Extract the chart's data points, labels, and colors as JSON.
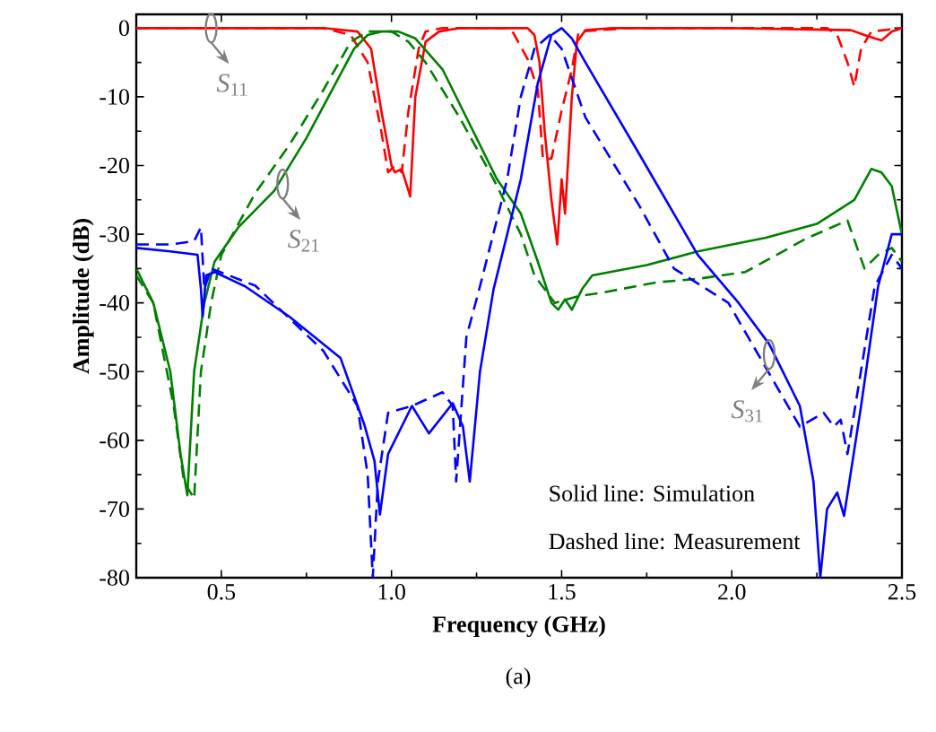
{
  "chart_data": {
    "type": "line",
    "xlabel": "Frequency (GHz)",
    "ylabel": "Amplitude (dB)",
    "xlim": [
      0.25,
      2.5
    ],
    "xticks": [
      0.5,
      {
        "value": 1.0,
        "label": "1.0"
      },
      1.5,
      {
        "value": 2.0,
        "label": "2.0"
      },
      2.5
    ],
    "ylim": [
      -80,
      2
    ],
    "yticks": [
      -80,
      -70,
      -60,
      -50,
      -40,
      -30,
      -20,
      -10,
      0
    ],
    "grid": false,
    "marker": "none",
    "series": [
      {
        "color": "#ff0000",
        "line_style": "solid",
        "x": [
          0.25,
          0.5,
          0.8,
          0.9,
          0.94,
          0.97,
          1.0,
          1.01,
          1.03,
          1.055,
          1.07,
          1.1,
          1.14,
          1.2,
          1.4,
          1.42,
          1.435,
          1.45,
          1.47,
          1.487,
          1.5,
          1.51,
          1.53,
          1.545,
          1.57,
          1.65,
          2.0,
          2.35,
          2.39,
          2.42,
          2.44,
          2.47,
          2.5
        ],
        "values": [
          0,
          0,
          0,
          -0.5,
          -3,
          -12,
          -20,
          -21,
          -20.5,
          -24.5,
          -10,
          -2,
          -0.5,
          0,
          0,
          -1,
          -5,
          -15,
          -25,
          -31.5,
          -22,
          -27,
          -10,
          -2,
          -0.3,
          0,
          0,
          -0.3,
          -1,
          -1.5,
          -1.8,
          -0.5,
          0
        ]
      },
      {
        "color": "#ff0000",
        "line_style": "dashed",
        "x": [
          0.25,
          0.5,
          0.8,
          0.88,
          0.93,
          0.97,
          0.99,
          1.01,
          1.03,
          1.05,
          1.08,
          1.1,
          1.15,
          1.35,
          1.4,
          1.43,
          1.445,
          1.47,
          1.5,
          1.53,
          1.55,
          1.7,
          2.0,
          2.28,
          2.31,
          2.34,
          2.36,
          2.38,
          2.41,
          2.5
        ],
        "values": [
          0,
          0,
          0,
          -1,
          -5,
          -15,
          -21,
          -20,
          -21,
          -12,
          -3,
          -0.5,
          0,
          0,
          -4.5,
          -9,
          -19,
          -19,
          -12,
          -6,
          -0.5,
          0,
          0,
          0,
          -1,
          -5,
          -8.5,
          -3,
          -0.5,
          0
        ]
      },
      {
        "color": "#008000",
        "line_style": "solid",
        "x": [
          0.25,
          0.3,
          0.35,
          0.38,
          0.4,
          0.42,
          0.45,
          0.48,
          0.55,
          0.655,
          0.75,
          0.89,
          0.93,
          0.97,
          1.02,
          1.07,
          1.15,
          1.31,
          1.38,
          1.43,
          1.47,
          1.49,
          1.51,
          1.53,
          1.56,
          1.59,
          1.75,
          1.9,
          2.1,
          2.25,
          2.36,
          2.41,
          2.44,
          2.47,
          2.5
        ],
        "values": [
          -35,
          -40,
          -50,
          -62,
          -68,
          -50,
          -40,
          -34,
          -29,
          -23.7,
          -16,
          -3,
          -1,
          -0.5,
          -0.5,
          -1.5,
          -6,
          -22,
          -27,
          -34,
          -40,
          -41,
          -39.5,
          -41,
          -38,
          -36,
          -34.5,
          -32.5,
          -30.5,
          -28.5,
          -25,
          -20.5,
          -21,
          -23,
          -30
        ]
      },
      {
        "color": "#008000",
        "line_style": "dashed",
        "x": [
          0.25,
          0.3,
          0.36,
          0.39,
          0.42,
          0.44,
          0.47,
          0.5,
          0.6,
          0.7,
          0.8,
          0.88,
          0.93,
          1.0,
          1.05,
          1.1,
          1.2,
          1.3,
          1.38,
          1.42,
          1.48,
          1.55,
          1.62,
          1.78,
          1.9,
          2.04,
          2.22,
          2.34,
          2.39,
          2.43,
          2.47,
          2.5
        ],
        "values": [
          -36,
          -40,
          -55,
          -66,
          -68.5,
          -50,
          -40,
          -33,
          -24,
          -17,
          -9,
          -2,
          -0.5,
          -0.5,
          -2,
          -5,
          -13,
          -22,
          -30,
          -36,
          -40,
          -39,
          -38.5,
          -37,
          -36.5,
          -35.5,
          -30.6,
          -28,
          -35,
          -33,
          -32,
          -34
        ]
      },
      {
        "color": "#0000ff",
        "line_style": "solid",
        "x": [
          0.25,
          0.35,
          0.43,
          0.44,
          0.445,
          0.455,
          0.48,
          0.57,
          0.7,
          0.85,
          0.92,
          0.95,
          0.966,
          0.99,
          1.06,
          1.11,
          1.18,
          1.21,
          1.23,
          1.26,
          1.3,
          1.38,
          1.43,
          1.47,
          1.5,
          1.53,
          1.57,
          1.73,
          1.9,
          2.02,
          2.11,
          2.2,
          2.24,
          2.26,
          2.28,
          2.31,
          2.33,
          2.38,
          2.43,
          2.47,
          2.5
        ],
        "values": [
          -32,
          -32.5,
          -33,
          -38,
          -42,
          -36,
          -35.5,
          -37.6,
          -42,
          -48,
          -57.7,
          -63,
          -70.8,
          -62,
          -55,
          -59,
          -54.6,
          -58,
          -66,
          -50,
          -38,
          -22,
          -8,
          -1,
          0,
          -1.5,
          -5,
          -18.5,
          -33,
          -40,
          -46,
          -55,
          -66,
          -80,
          -70,
          -67.6,
          -71,
          -55,
          -37.6,
          -30,
          -30
        ]
      },
      {
        "color": "#0000ff",
        "line_style": "dashed",
        "x": [
          0.25,
          0.35,
          0.42,
          0.44,
          0.45,
          0.47,
          0.6,
          0.8,
          0.9,
          0.93,
          0.945,
          0.96,
          0.99,
          1.06,
          1.15,
          1.18,
          1.19,
          1.22,
          1.26,
          1.34,
          1.38,
          1.42,
          1.465,
          1.5,
          1.57,
          1.73,
          1.83,
          1.99,
          2.2,
          2.27,
          2.3,
          2.32,
          2.34,
          2.42,
          2.47,
          2.5
        ],
        "values": [
          -31.5,
          -31.5,
          -31,
          -29,
          -38,
          -35,
          -37.5,
          -47,
          -55,
          -65,
          -80,
          -66,
          -56,
          -55,
          -53,
          -55,
          -66,
          -45,
          -37.6,
          -22,
          -10,
          -3,
          -1,
          -3,
          -13,
          -26,
          -35,
          -40,
          -58,
          -56,
          -58,
          -57,
          -62,
          -37.6,
          -33,
          -35
        ]
      }
    ],
    "annotations": [
      {
        "text": "*S*$_{11}$",
        "x": 0.47,
        "y": 0
      },
      {
        "text": "*S*$_{21}$",
        "x": 0.68,
        "y": -22.7
      },
      {
        "text": "*S*$_{31}$",
        "x": 2.11,
        "y": -47.5
      },
      "Solid line: Simulation",
      "Dashed line: Measurement",
      "(a)"
    ]
  }
}
